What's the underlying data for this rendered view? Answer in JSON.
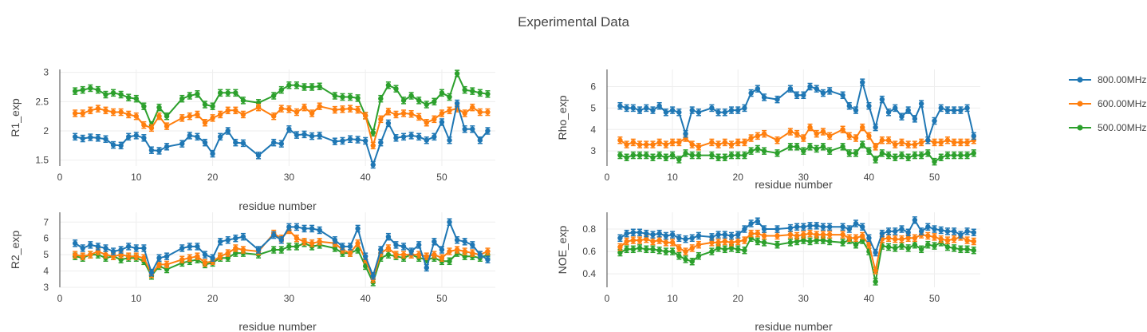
{
  "title": "Experimental Data",
  "legend": [
    {
      "name": "800.00MHz",
      "color": "#1f77b4"
    },
    {
      "name": "600.00MHz",
      "color": "#ff7f0e"
    },
    {
      "name": "500.00MHz",
      "color": "#2ca02c"
    }
  ],
  "chart_data": [
    {
      "id": "r1",
      "type": "line",
      "title": "",
      "xlabel": "residue number",
      "ylabel": "R1_exp",
      "xlim": [
        0,
        57
      ],
      "ylim": [
        1.4,
        3.05
      ],
      "xticks": [
        "0",
        "10",
        "20",
        "30",
        "40",
        "50"
      ],
      "yticks": [
        "1.5",
        "2",
        "2.5",
        "3"
      ],
      "x": [
        2,
        3,
        4,
        5,
        6,
        7,
        8,
        9,
        10,
        11,
        12,
        13,
        14,
        16,
        17,
        18,
        19,
        20,
        21,
        22,
        23,
        24,
        26,
        28,
        29,
        30,
        31,
        32,
        33,
        34,
        36,
        37,
        38,
        39,
        40,
        41,
        42,
        43,
        44,
        45,
        46,
        47,
        48,
        49,
        50,
        51,
        52,
        53,
        54,
        55,
        56
      ],
      "series": [
        {
          "name": "800.00MHz",
          "values": [
            1.9,
            1.87,
            1.89,
            1.88,
            1.86,
            1.76,
            1.75,
            1.9,
            1.92,
            1.88,
            1.67,
            1.66,
            1.73,
            1.78,
            1.92,
            1.9,
            1.8,
            1.61,
            1.9,
            2.0,
            1.8,
            1.79,
            1.58,
            1.8,
            1.78,
            2.03,
            1.93,
            1.94,
            1.91,
            1.92,
            1.82,
            1.83,
            1.86,
            1.85,
            1.83,
            1.42,
            1.8,
            2.13,
            1.88,
            1.9,
            1.92,
            1.9,
            1.84,
            1.9,
            2.15,
            1.84,
            2.47,
            2.03,
            2.03,
            1.84,
            2.0
          ]
        },
        {
          "name": "600.00MHz",
          "values": [
            2.3,
            2.3,
            2.35,
            2.38,
            2.35,
            2.32,
            2.32,
            2.28,
            2.25,
            2.1,
            2.05,
            2.25,
            2.08,
            2.22,
            2.25,
            2.28,
            2.14,
            2.22,
            2.28,
            2.35,
            2.35,
            2.28,
            2.4,
            2.25,
            2.38,
            2.37,
            2.32,
            2.4,
            2.3,
            2.42,
            2.36,
            2.37,
            2.38,
            2.36,
            2.26,
            1.75,
            2.2,
            2.33,
            2.28,
            2.3,
            2.29,
            2.24,
            2.14,
            2.2,
            2.3,
            2.35,
            2.38,
            2.3,
            2.4,
            2.32,
            2.32
          ]
        },
        {
          "name": "500.00MHz",
          "values": [
            2.68,
            2.7,
            2.73,
            2.7,
            2.62,
            2.65,
            2.62,
            2.57,
            2.55,
            2.42,
            2.1,
            2.4,
            2.25,
            2.55,
            2.6,
            2.63,
            2.45,
            2.42,
            2.65,
            2.65,
            2.65,
            2.52,
            2.48,
            2.6,
            2.7,
            2.78,
            2.78,
            2.75,
            2.75,
            2.76,
            2.6,
            2.58,
            2.58,
            2.56,
            2.26,
            1.97,
            2.55,
            2.78,
            2.72,
            2.52,
            2.6,
            2.52,
            2.45,
            2.5,
            2.65,
            2.58,
            2.98,
            2.7,
            2.68,
            2.65,
            2.63
          ]
        }
      ]
    },
    {
      "id": "rho",
      "type": "line",
      "title": "",
      "xlabel": "residue number",
      "ylabel": "Rho_exp",
      "xlim": [
        0,
        57
      ],
      "ylim": [
        2.3,
        6.8
      ],
      "xticks": [
        "0",
        "10",
        "20",
        "30",
        "40",
        "50"
      ],
      "yticks": [
        "3",
        "4",
        "5",
        "6"
      ],
      "x": [
        2,
        3,
        4,
        5,
        6,
        7,
        8,
        9,
        10,
        11,
        12,
        13,
        14,
        16,
        17,
        18,
        19,
        20,
        21,
        22,
        23,
        24,
        26,
        28,
        29,
        30,
        31,
        32,
        33,
        34,
        36,
        37,
        38,
        39,
        40,
        41,
        42,
        43,
        44,
        45,
        46,
        47,
        48,
        49,
        50,
        51,
        52,
        53,
        54,
        55,
        56
      ],
      "series": [
        {
          "name": "800.00MHz",
          "values": [
            5.1,
            5.0,
            5.0,
            4.9,
            5.0,
            4.9,
            5.1,
            4.8,
            4.9,
            4.8,
            3.8,
            4.9,
            4.8,
            5.0,
            4.8,
            4.8,
            4.9,
            4.9,
            5.0,
            5.7,
            5.9,
            5.5,
            5.4,
            5.9,
            5.6,
            5.6,
            6.0,
            5.9,
            5.7,
            5.8,
            5.6,
            5.1,
            4.9,
            6.2,
            5.1,
            4.1,
            5.4,
            4.8,
            5.0,
            4.6,
            4.9,
            4.5,
            5.2,
            3.5,
            4.4,
            5.0,
            4.9,
            4.9,
            4.9,
            5.0,
            3.7
          ]
        },
        {
          "name": "600.00MHz",
          "values": [
            3.5,
            3.3,
            3.4,
            3.3,
            3.3,
            3.3,
            3.4,
            3.3,
            3.4,
            3.4,
            3.6,
            3.3,
            3.2,
            3.4,
            3.3,
            3.4,
            3.3,
            3.4,
            3.4,
            3.6,
            3.7,
            3.8,
            3.5,
            3.9,
            3.8,
            3.6,
            4.1,
            3.8,
            3.9,
            3.7,
            4.0,
            3.7,
            3.6,
            4.1,
            3.7,
            3.2,
            3.5,
            3.5,
            3.3,
            3.4,
            3.3,
            3.3,
            3.4,
            3.5,
            3.4,
            3.4,
            3.5,
            3.4,
            3.4,
            3.4,
            3.5
          ]
        },
        {
          "name": "500.00MHz",
          "values": [
            2.8,
            2.7,
            2.8,
            2.8,
            2.8,
            2.7,
            2.8,
            2.7,
            2.8,
            2.6,
            2.9,
            2.8,
            2.8,
            2.8,
            2.7,
            2.7,
            2.8,
            2.8,
            2.8,
            3.0,
            3.1,
            3.0,
            2.9,
            3.2,
            3.2,
            3.0,
            3.2,
            3.1,
            3.2,
            3.0,
            3.2,
            2.9,
            2.9,
            3.3,
            3.0,
            2.6,
            2.9,
            2.8,
            2.7,
            2.8,
            2.7,
            2.8,
            2.8,
            2.9,
            2.5,
            2.7,
            2.8,
            2.8,
            2.8,
            2.8,
            2.9
          ]
        }
      ]
    },
    {
      "id": "r2",
      "type": "line",
      "title": "",
      "xlabel": "residue number",
      "ylabel": "R2_exp",
      "xlim": [
        0,
        57
      ],
      "ylim": [
        3,
        7.6
      ],
      "xticks": [
        "0",
        "10",
        "20",
        "30",
        "40",
        "50"
      ],
      "yticks": [
        "3",
        "4",
        "5",
        "6",
        "7"
      ],
      "x": [
        2,
        3,
        4,
        5,
        6,
        7,
        8,
        9,
        10,
        11,
        12,
        13,
        14,
        16,
        17,
        18,
        19,
        20,
        21,
        22,
        23,
        24,
        26,
        28,
        29,
        30,
        31,
        32,
        33,
        34,
        36,
        37,
        38,
        39,
        40,
        41,
        42,
        43,
        44,
        45,
        46,
        47,
        48,
        49,
        50,
        51,
        52,
        53,
        54,
        55,
        56
      ],
      "series": [
        {
          "name": "800.00MHz",
          "values": [
            5.7,
            5.4,
            5.6,
            5.5,
            5.4,
            5.2,
            5.3,
            5.5,
            5.4,
            5.4,
            3.9,
            4.8,
            4.9,
            5.4,
            5.5,
            5.5,
            5.0,
            4.8,
            5.8,
            5.9,
            6.0,
            6.1,
            5.3,
            6.2,
            5.9,
            6.7,
            6.7,
            6.6,
            6.6,
            6.5,
            5.9,
            5.5,
            5.5,
            6.6,
            4.9,
            3.7,
            5.3,
            6.1,
            5.6,
            5.5,
            5.2,
            5.6,
            4.2,
            5.8,
            5.3,
            7.0,
            5.9,
            5.8,
            5.6,
            5.0,
            4.7
          ]
        },
        {
          "name": "600.00MHz",
          "values": [
            5.0,
            4.9,
            5.0,
            5.2,
            5.0,
            4.9,
            5.0,
            4.9,
            4.9,
            4.8,
            3.8,
            4.4,
            4.4,
            4.7,
            4.8,
            4.9,
            4.5,
            4.6,
            4.9,
            5.1,
            5.4,
            5.3,
            5.2,
            6.3,
            6.0,
            6.5,
            6.0,
            5.8,
            5.7,
            5.8,
            5.7,
            5.3,
            5.1,
            5.7,
            4.7,
            3.5,
            5.1,
            5.4,
            5.0,
            5.0,
            5.0,
            5.0,
            4.9,
            5.0,
            4.8,
            5.2,
            5.3,
            5.2,
            5.1,
            5.0,
            5.2
          ]
        },
        {
          "name": "500.00MHz",
          "values": [
            4.9,
            4.8,
            5.0,
            5.0,
            4.8,
            4.9,
            4.7,
            4.8,
            4.8,
            4.6,
            3.7,
            4.3,
            4.1,
            4.5,
            4.6,
            4.7,
            4.4,
            4.5,
            4.8,
            4.8,
            5.1,
            5.1,
            5.0,
            5.3,
            5.3,
            5.5,
            5.5,
            5.7,
            5.5,
            5.6,
            5.4,
            5.1,
            5.1,
            5.3,
            4.3,
            3.3,
            4.8,
            5.0,
            4.9,
            4.8,
            5.0,
            4.8,
            4.7,
            4.8,
            4.6,
            4.6,
            5.1,
            4.9,
            4.9,
            4.8,
            5.0
          ]
        }
      ]
    },
    {
      "id": "noe",
      "type": "line",
      "title": "",
      "xlabel": "residue number",
      "ylabel": "NOE_exp",
      "xlim": [
        0,
        57
      ],
      "ylim": [
        0.28,
        0.95
      ],
      "xticks": [
        "0",
        "10",
        "20",
        "30",
        "40",
        "50"
      ],
      "yticks": [
        "0.4",
        "0.6",
        "0.8"
      ],
      "x": [
        2,
        3,
        4,
        5,
        6,
        7,
        8,
        9,
        10,
        11,
        12,
        13,
        14,
        16,
        17,
        18,
        19,
        20,
        21,
        22,
        23,
        24,
        26,
        28,
        29,
        30,
        31,
        32,
        33,
        34,
        36,
        37,
        38,
        39,
        40,
        41,
        42,
        43,
        44,
        45,
        46,
        47,
        48,
        49,
        50,
        51,
        52,
        53,
        54,
        55,
        56
      ],
      "series": [
        {
          "name": "800.00MHz",
          "values": [
            0.72,
            0.76,
            0.77,
            0.77,
            0.76,
            0.75,
            0.76,
            0.74,
            0.75,
            0.72,
            0.71,
            0.72,
            0.74,
            0.73,
            0.75,
            0.75,
            0.74,
            0.75,
            0.8,
            0.85,
            0.87,
            0.8,
            0.8,
            0.81,
            0.82,
            0.82,
            0.83,
            0.83,
            0.82,
            0.82,
            0.82,
            0.8,
            0.85,
            0.82,
            0.72,
            0.59,
            0.76,
            0.78,
            0.78,
            0.8,
            0.77,
            0.88,
            0.78,
            0.82,
            0.8,
            0.79,
            0.78,
            0.78,
            0.75,
            0.78,
            0.77
          ]
        },
        {
          "name": "600.00MHz",
          "values": [
            0.64,
            0.69,
            0.7,
            0.7,
            0.71,
            0.69,
            0.7,
            0.68,
            0.68,
            0.63,
            0.6,
            0.63,
            0.66,
            0.68,
            0.68,
            0.69,
            0.68,
            0.69,
            0.7,
            0.76,
            0.76,
            0.74,
            0.74,
            0.75,
            0.74,
            0.75,
            0.76,
            0.75,
            0.75,
            0.75,
            0.75,
            0.72,
            0.72,
            0.74,
            0.66,
            0.43,
            0.71,
            0.72,
            0.71,
            0.71,
            0.72,
            0.72,
            0.75,
            0.74,
            0.73,
            0.71,
            0.7,
            0.71,
            0.73,
            0.7,
            0.69
          ]
        },
        {
          "name": "500.00MHz",
          "values": [
            0.59,
            0.62,
            0.62,
            0.63,
            0.62,
            0.62,
            0.61,
            0.6,
            0.6,
            0.56,
            0.53,
            0.51,
            0.56,
            0.6,
            0.63,
            0.62,
            0.63,
            0.62,
            0.61,
            0.72,
            0.69,
            0.68,
            0.66,
            0.68,
            0.69,
            0.7,
            0.69,
            0.7,
            0.7,
            0.69,
            0.68,
            0.7,
            0.66,
            0.7,
            0.6,
            0.33,
            0.65,
            0.64,
            0.63,
            0.65,
            0.63,
            0.66,
            0.62,
            0.66,
            0.65,
            0.68,
            0.64,
            0.63,
            0.62,
            0.62,
            0.61
          ]
        }
      ]
    }
  ]
}
